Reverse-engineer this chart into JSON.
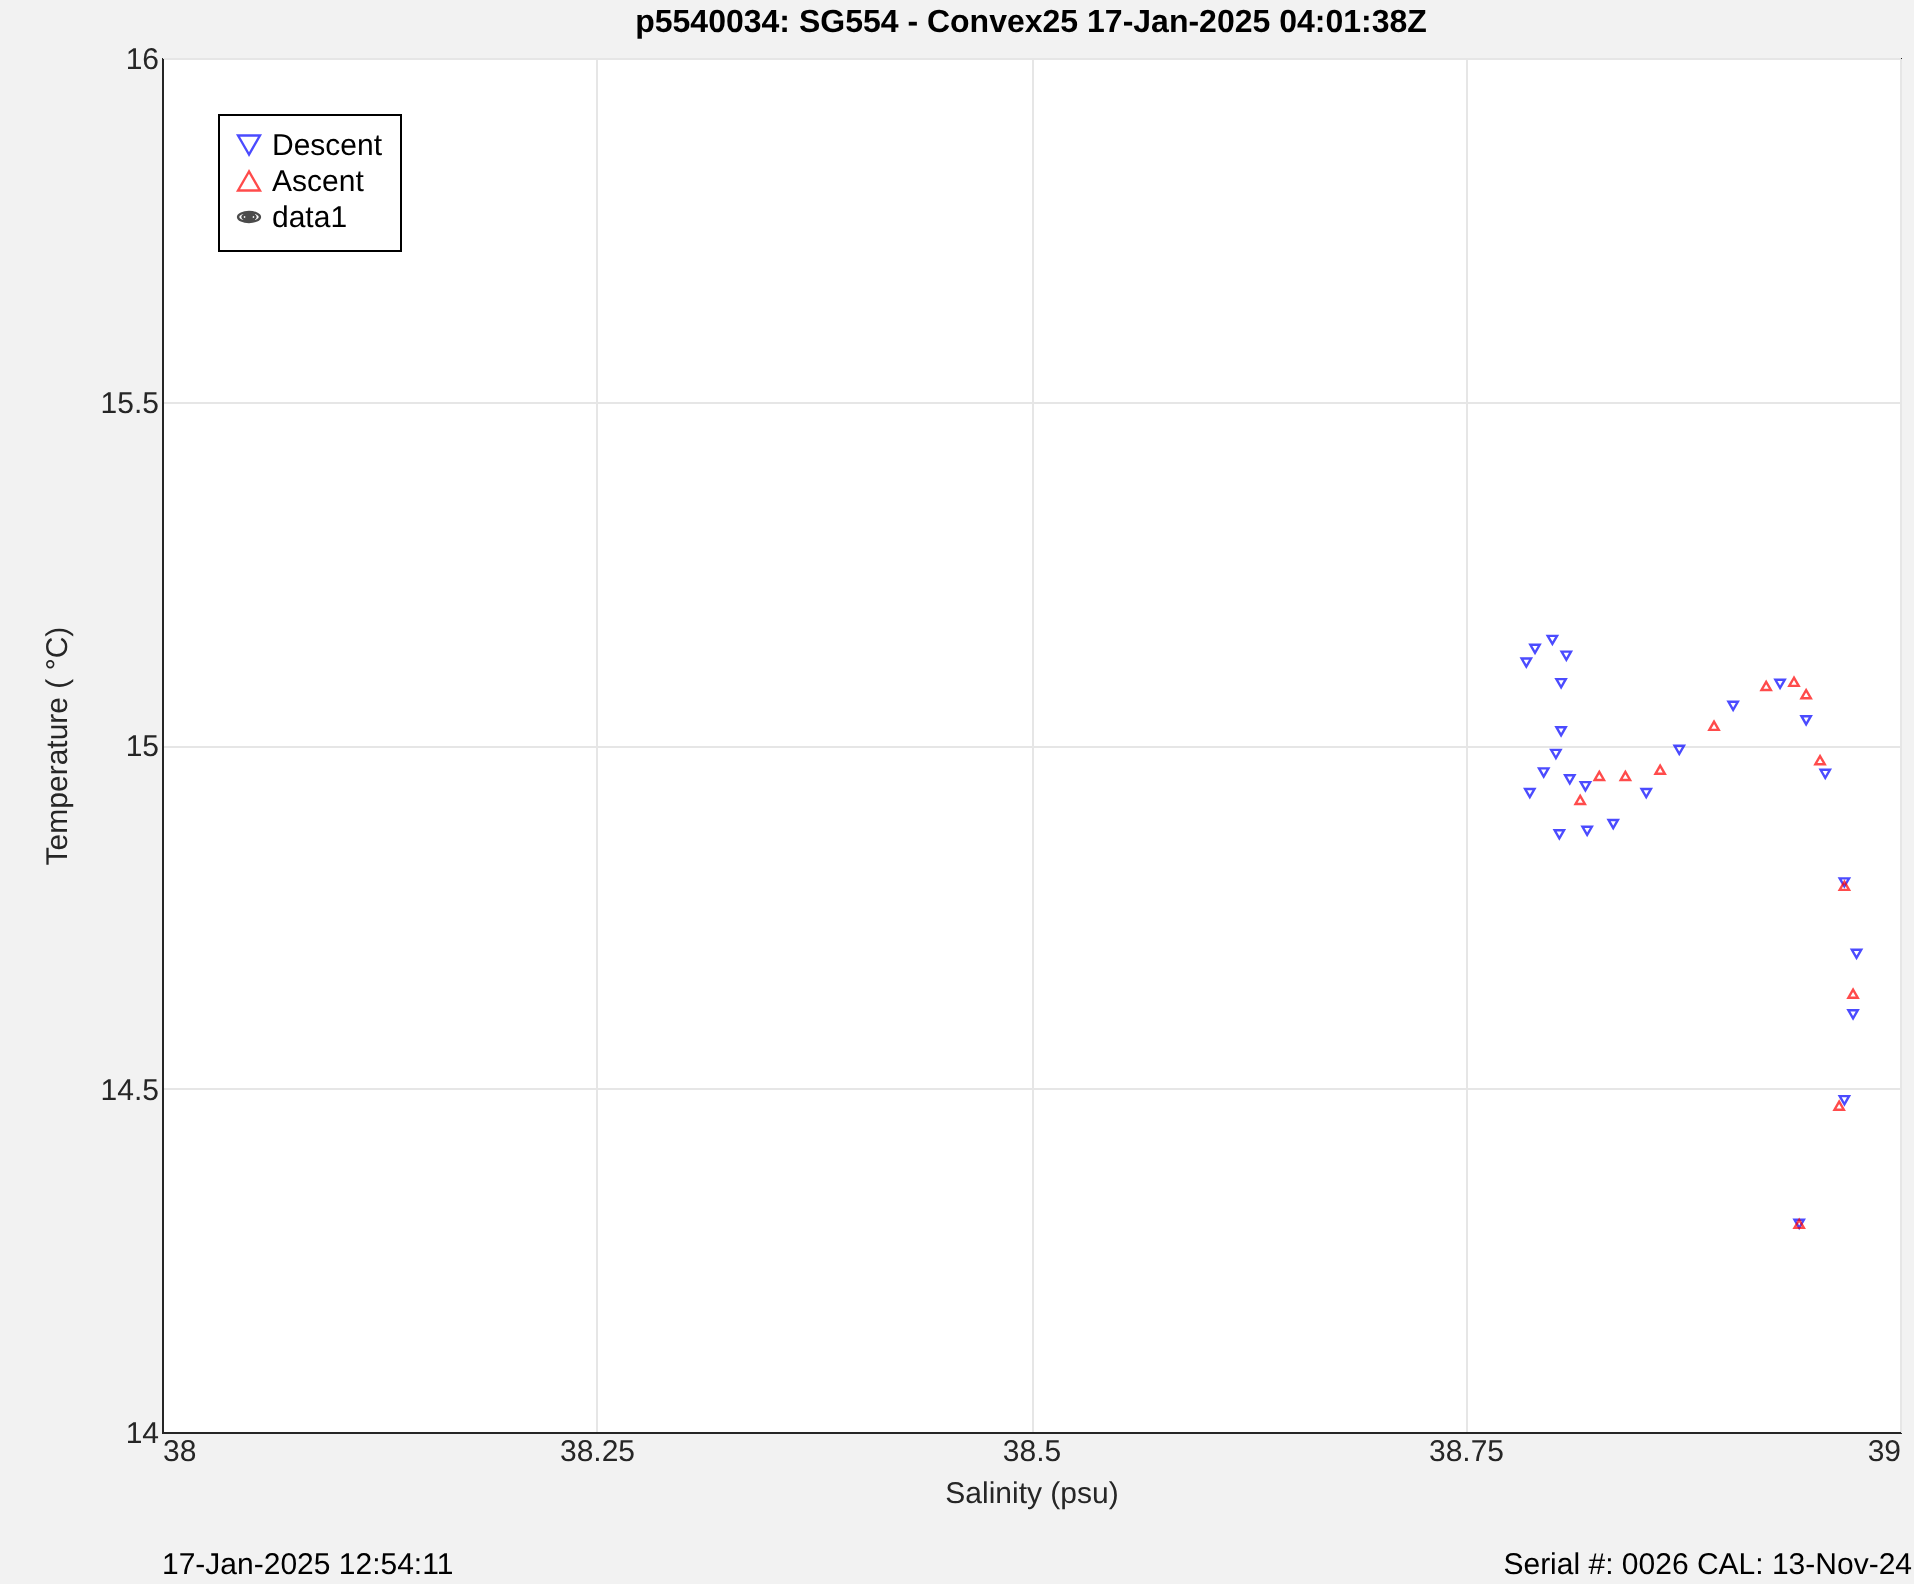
{
  "chart_data": {
    "type": "scatter",
    "title": "p5540034: SG554 - Convex25 17-Jan-2025 04:01:38Z",
    "xlabel": "Salinity (psu)",
    "ylabel": "Temperature (   °C)",
    "annotations": [
      "17-Jan-2025 12:54:11",
      "Serial #: 0026 CAL: 13-Nov-24"
    ],
    "xlim": [
      38,
      39
    ],
    "xticks": [
      38,
      38.25,
      38.5,
      38.75,
      39
    ],
    "ylim": [
      14,
      16
    ],
    "yticks": [
      14,
      14.5,
      15,
      15.5,
      16
    ],
    "grid": true,
    "legend": "top left",
    "series": [
      {
        "name": "Descent",
        "color": "#0000ff",
        "marker": "triangle-down",
        "x": [
          38.785,
          38.79,
          38.8,
          38.808,
          38.805,
          38.805,
          38.802,
          38.795,
          38.787,
          38.81,
          38.819,
          38.804,
          38.82,
          38.835,
          38.854,
          38.873,
          38.904,
          38.931,
          38.946,
          38.957,
          38.968,
          38.975,
          38.973,
          38.968,
          38.942
        ],
        "values": [
          15.12,
          15.14,
          15.153,
          15.13,
          15.09,
          15.02,
          14.987,
          14.96,
          14.93,
          14.95,
          14.94,
          14.87,
          14.875,
          14.885,
          14.93,
          14.993,
          15.057,
          15.089,
          15.036,
          14.958,
          14.8,
          14.696,
          14.608,
          14.483,
          14.303
        ]
      },
      {
        "name": "Ascent",
        "color": "#ff0000",
        "marker": "triangle-up",
        "x": [
          38.942,
          38.965,
          38.973,
          38.968,
          38.954,
          38.946,
          38.939,
          38.923,
          38.893,
          38.862,
          38.842,
          38.827,
          38.816
        ],
        "values": [
          14.303,
          14.475,
          14.638,
          14.795,
          14.978,
          15.074,
          15.092,
          15.086,
          15.028,
          14.964,
          14.955,
          14.955,
          14.92
        ]
      },
      {
        "name": "data1",
        "color": "#000000",
        "type": "other",
        "marker": "contour"
      }
    ]
  }
}
